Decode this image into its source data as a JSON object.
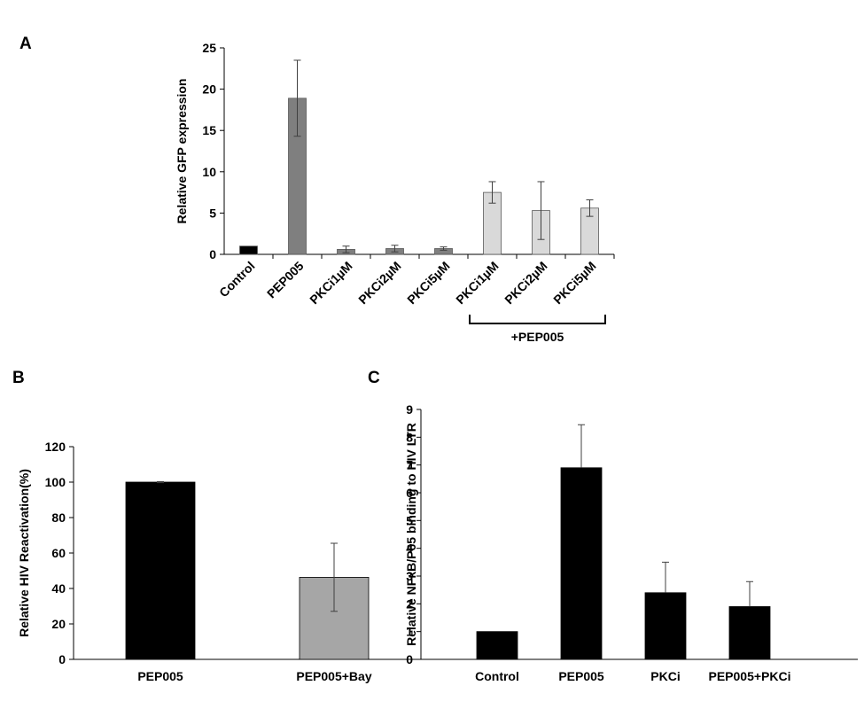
{
  "chart_data": [
    {
      "panel": "A",
      "type": "bar",
      "title": "",
      "xlabel": "",
      "ylabel": "Relative GFP expression",
      "ylim": [
        0,
        25
      ],
      "yticks": [
        0,
        5,
        10,
        15,
        20,
        25
      ],
      "categories": [
        "Control",
        "PEP005",
        "PKCi1µM",
        "PKCi2µM",
        "PKCi5µM",
        "PKCi1µM",
        "PKCi2µM",
        "PKCi5µM"
      ],
      "values": [
        1.0,
        18.9,
        0.6,
        0.7,
        0.7,
        7.5,
        5.3,
        5.6
      ],
      "errors": [
        0.0,
        4.6,
        0.4,
        0.4,
        0.2,
        1.3,
        3.5,
        1.0
      ],
      "bar_colors": [
        "#000000",
        "#7f7f7f",
        "#7f7f7f",
        "#7f7f7f",
        "#7f7f7f",
        "#d9d9d9",
        "#d9d9d9",
        "#d9d9d9"
      ],
      "bracket": {
        "label": "+PEP005",
        "from_index": 5,
        "to_index": 7
      },
      "grid": false
    },
    {
      "panel": "B",
      "type": "bar",
      "title": "",
      "xlabel": "",
      "ylabel": "Relative HIV Reactivation(%)",
      "ylim": [
        0,
        120
      ],
      "yticks": [
        0,
        20,
        40,
        60,
        80,
        100,
        120
      ],
      "categories": [
        "PEP005",
        "PEP005+Bay"
      ],
      "values": [
        100,
        46.3
      ],
      "errors": [
        0.3,
        19.2
      ],
      "bar_colors": [
        "#000000",
        "#a6a6a6"
      ],
      "grid": false
    },
    {
      "panel": "C",
      "type": "bar",
      "title": "",
      "xlabel": "",
      "ylabel": "Relative NFκB/P65 binding to HIV LTR",
      "ylim": [
        0,
        9
      ],
      "yticks": [
        0,
        1,
        2,
        3,
        4,
        5,
        6,
        7,
        8,
        9
      ],
      "categories": [
        "Control",
        "PEP005",
        "PKCi",
        "PEP005+PKCi"
      ],
      "values": [
        1.0,
        6.9,
        2.4,
        1.9
      ],
      "errors": [
        0.0,
        1.55,
        1.1,
        0.9
      ],
      "bar_colors": [
        "#000000",
        "#000000",
        "#000000",
        "#000000"
      ],
      "grid": false
    }
  ]
}
